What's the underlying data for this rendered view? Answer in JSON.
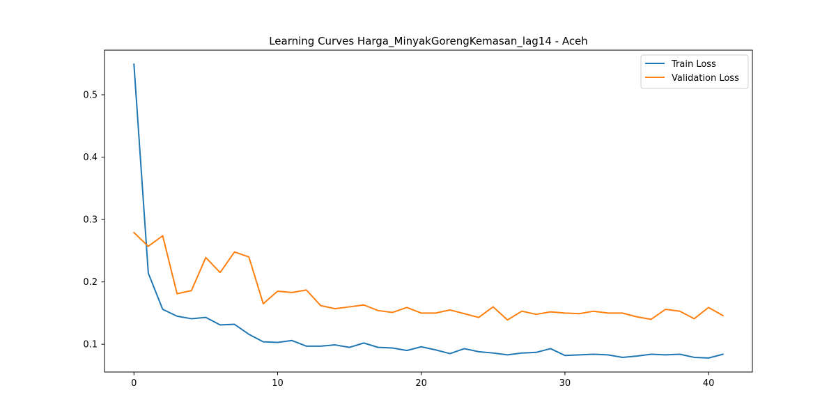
{
  "chart_data": {
    "type": "line",
    "title": "Learning Curves Harga_MinyakGorengKemasan_lag14 - Aceh",
    "xlabel": "",
    "ylabel": "",
    "xlim": [
      -2.05,
      43.05
    ],
    "ylim": [
      0.0555,
      0.5715
    ],
    "xticks": [
      0,
      10,
      20,
      30,
      40
    ],
    "yticks": [
      0.1,
      0.2,
      0.3,
      0.4,
      0.5
    ],
    "ytick_labels": [
      "0.1",
      "0.2",
      "0.3",
      "0.4",
      "0.5"
    ],
    "legend_position": "top-right",
    "grid": false,
    "series": [
      {
        "name": "Train Loss",
        "color": "#1f77b4",
        "x": [
          0,
          1,
          2,
          3,
          4,
          5,
          6,
          7,
          8,
          9,
          10,
          11,
          12,
          13,
          14,
          15,
          16,
          17,
          18,
          19,
          20,
          21,
          22,
          23,
          24,
          25,
          26,
          27,
          28,
          29,
          30,
          31,
          32,
          33,
          34,
          35,
          36,
          37,
          38,
          39,
          40,
          41
        ],
        "values": [
          0.549,
          0.214,
          0.156,
          0.145,
          0.141,
          0.143,
          0.131,
          0.132,
          0.116,
          0.104,
          0.103,
          0.106,
          0.097,
          0.097,
          0.099,
          0.095,
          0.102,
          0.095,
          0.094,
          0.09,
          0.096,
          0.091,
          0.085,
          0.093,
          0.088,
          0.086,
          0.083,
          0.086,
          0.087,
          0.093,
          0.082,
          0.083,
          0.084,
          0.083,
          0.079,
          0.081,
          0.084,
          0.083,
          0.084,
          0.079,
          0.078,
          0.084
        ]
      },
      {
        "name": "Validation Loss",
        "color": "#ff7f0e",
        "x": [
          0,
          1,
          2,
          3,
          4,
          5,
          6,
          7,
          8,
          9,
          10,
          11,
          12,
          13,
          14,
          15,
          16,
          17,
          18,
          19,
          20,
          21,
          22,
          23,
          24,
          25,
          26,
          27,
          28,
          29,
          30,
          31,
          32,
          33,
          34,
          35,
          36,
          37,
          38,
          39,
          40,
          41
        ],
        "values": [
          0.279,
          0.257,
          0.274,
          0.181,
          0.186,
          0.239,
          0.215,
          0.248,
          0.24,
          0.165,
          0.185,
          0.183,
          0.187,
          0.162,
          0.157,
          0.16,
          0.163,
          0.154,
          0.151,
          0.159,
          0.15,
          0.15,
          0.155,
          0.149,
          0.143,
          0.16,
          0.139,
          0.153,
          0.148,
          0.152,
          0.15,
          0.149,
          0.153,
          0.15,
          0.15,
          0.144,
          0.14,
          0.156,
          0.153,
          0.141,
          0.159,
          0.146
        ]
      }
    ]
  }
}
